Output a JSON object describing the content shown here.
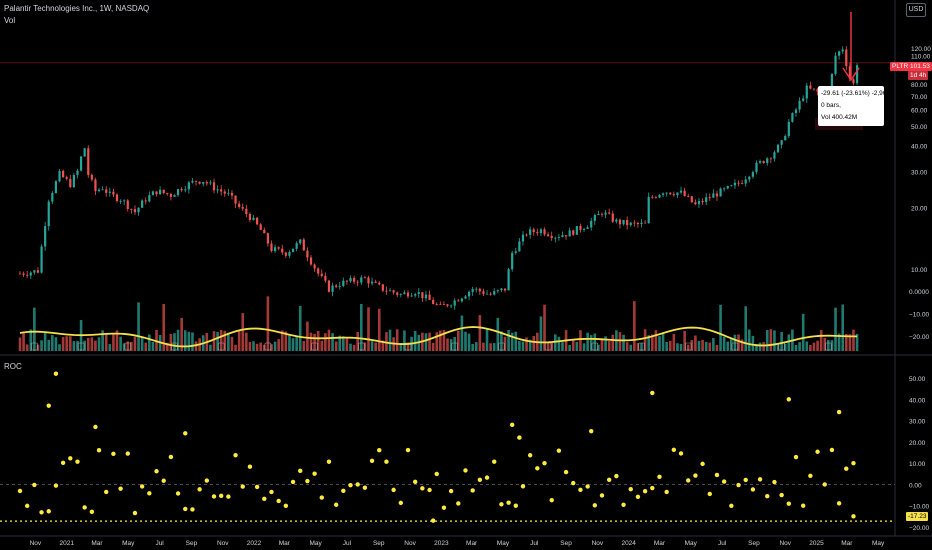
{
  "header": {
    "symbol_line": "Palantir Technologies Inc., 1W, NASDAQ",
    "volume_label": "Vol",
    "roc_label": "ROC",
    "currency_button": "USD"
  },
  "price_tag": {
    "ticker": "PLTR",
    "price": "101.53",
    "countdown": "1d 4h"
  },
  "measure_tooltip": {
    "line1": "-29.61 (-23.61%) -2,961",
    "line2": "0 bars,",
    "line3": "Vol 400.42M"
  },
  "roc_tag": "-17.23",
  "colors": {
    "up": "#26a69a",
    "down": "#ef5350",
    "ma": "#f5e04a",
    "roc": "#ffeb3b",
    "background": "#000000",
    "axis_text": "#d1d4dc",
    "arrow": "#f23645"
  },
  "chart_data": [
    {
      "type": "candlestick",
      "scale": "log",
      "ylim": [
        5,
        128
      ],
      "yticks": [
        10.0,
        20.0,
        30.0,
        40.0,
        50.0,
        60.0,
        70.0,
        80.0,
        90.0,
        110.0,
        120.0
      ],
      "ytick_labels": [
        "10.00",
        "20.00",
        "30.00",
        "40.00",
        "50.00",
        "60.00",
        "70.00",
        "80.00",
        "90.00",
        "110.00",
        "120.00"
      ],
      "x_start": "2020-10-02",
      "x_end": "2025-05-30",
      "x_tick_labels": [
        {
          "label": "Nov",
          "date": "2020-11-01"
        },
        {
          "label": "2021",
          "date": "2021-01-01"
        },
        {
          "label": "Mar",
          "date": "2021-03-01"
        },
        {
          "label": "May",
          "date": "2021-05-01"
        },
        {
          "label": "Jul",
          "date": "2021-07-01"
        },
        {
          "label": "Sep",
          "date": "2021-09-01"
        },
        {
          "label": "Nov",
          "date": "2021-11-01"
        },
        {
          "label": "2022",
          "date": "2022-01-01"
        },
        {
          "label": "Mar",
          "date": "2022-03-01"
        },
        {
          "label": "May",
          "date": "2022-05-01"
        },
        {
          "label": "Jul",
          "date": "2022-07-01"
        },
        {
          "label": "Sep",
          "date": "2022-09-01"
        },
        {
          "label": "Nov",
          "date": "2022-11-01"
        },
        {
          "label": "2023",
          "date": "2023-01-01"
        },
        {
          "label": "Mar",
          "date": "2023-03-01"
        },
        {
          "label": "May",
          "date": "2023-05-01"
        },
        {
          "label": "Jul",
          "date": "2023-07-01"
        },
        {
          "label": "Sep",
          "date": "2023-09-01"
        },
        {
          "label": "Nov",
          "date": "2023-11-01"
        },
        {
          "label": "2024",
          "date": "2024-01-01"
        },
        {
          "label": "Mar",
          "date": "2024-03-01"
        },
        {
          "label": "May",
          "date": "2024-05-01"
        },
        {
          "label": "Jul",
          "date": "2024-07-01"
        },
        {
          "label": "Sep",
          "date": "2024-09-01"
        },
        {
          "label": "Nov",
          "date": "2024-11-01"
        },
        {
          "label": "2025",
          "date": "2025-01-01"
        },
        {
          "label": "Mar",
          "date": "2025-03-01"
        },
        {
          "label": "May",
          "date": "2025-05-01"
        }
      ],
      "close_path": [
        [
          "2020-10-02",
          9.5
        ],
        [
          "2020-11-06",
          9.8
        ],
        [
          "2020-11-27",
          22
        ],
        [
          "2020-12-18",
          29
        ],
        [
          "2021-01-08",
          26
        ],
        [
          "2021-01-22",
          30
        ],
        [
          "2021-01-29",
          35
        ],
        [
          "2021-02-05",
          39
        ],
        [
          "2021-02-12",
          29
        ],
        [
          "2021-02-26",
          24
        ],
        [
          "2021-03-12",
          25
        ],
        [
          "2021-03-26",
          23
        ],
        [
          "2021-04-16",
          22
        ],
        [
          "2021-05-14",
          19
        ],
        [
          "2021-06-04",
          22
        ],
        [
          "2021-06-25",
          24
        ],
        [
          "2021-07-23",
          23
        ],
        [
          "2021-08-13",
          25
        ],
        [
          "2021-09-10",
          27
        ],
        [
          "2021-09-24",
          27
        ],
        [
          "2021-10-15",
          25
        ],
        [
          "2021-11-12",
          23
        ],
        [
          "2021-12-03",
          20
        ],
        [
          "2021-12-24",
          18
        ],
        [
          "2022-01-14",
          15.5
        ],
        [
          "2022-02-04",
          12.5
        ],
        [
          "2022-03-04",
          12
        ],
        [
          "2022-04-01",
          13.5
        ],
        [
          "2022-05-06",
          9.5
        ],
        [
          "2022-05-27",
          8
        ],
        [
          "2022-06-17",
          8.5
        ],
        [
          "2022-08-05",
          9
        ],
        [
          "2022-08-19",
          8.5
        ],
        [
          "2022-09-09",
          8
        ],
        [
          "2022-10-14",
          7.5
        ],
        [
          "2022-11-11",
          7.8
        ],
        [
          "2022-12-30",
          6.5
        ],
        [
          "2023-01-27",
          7
        ],
        [
          "2023-03-03",
          8
        ],
        [
          "2023-04-07",
          7.5
        ],
        [
          "2023-05-05",
          8
        ],
        [
          "2023-05-19",
          12
        ],
        [
          "2023-06-16",
          15
        ],
        [
          "2023-07-14",
          15.5
        ],
        [
          "2023-08-11",
          14.5
        ],
        [
          "2023-09-08",
          15
        ],
        [
          "2023-10-13",
          16.5
        ],
        [
          "2023-11-10",
          19
        ],
        [
          "2023-12-08",
          17
        ],
        [
          "2024-01-05",
          16.5
        ],
        [
          "2024-02-02",
          16.5
        ],
        [
          "2024-02-09",
          22
        ],
        [
          "2024-03-08",
          24
        ],
        [
          "2024-04-12",
          23.5
        ],
        [
          "2024-05-10",
          20.5
        ],
        [
          "2024-06-14",
          23
        ],
        [
          "2024-07-19",
          25
        ],
        [
          "2024-08-09",
          27
        ],
        [
          "2024-09-06",
          32
        ],
        [
          "2024-10-04",
          36
        ],
        [
          "2024-10-25",
          41
        ],
        [
          "2024-11-08",
          52
        ],
        [
          "2024-11-22",
          60
        ],
        [
          "2024-12-13",
          76
        ],
        [
          "2025-01-03",
          73
        ],
        [
          "2025-01-24",
          71
        ],
        [
          "2025-02-07",
          110
        ],
        [
          "2025-02-21",
          120
        ],
        [
          "2025-03-07",
          85
        ],
        [
          "2025-03-14",
          80
        ],
        [
          "2025-03-21",
          101.53
        ]
      ],
      "last_price": 101.53,
      "last_price_line": true
    },
    {
      "type": "bar",
      "name": "Vol",
      "yticks": [
        0,
        -10,
        -20
      ],
      "ytick_labels": [
        "0.0000",
        "−10.00",
        "−20.00"
      ],
      "ma_line": true
    },
    {
      "type": "scatter",
      "name": "ROC",
      "ylim": [
        -23,
        58
      ],
      "yticks": [
        50,
        40,
        30,
        20,
        10,
        0,
        -10,
        -20
      ],
      "ytick_labels": [
        "50.00",
        "40.00",
        "30.00",
        "20.00",
        "10.00",
        "0.00",
        "−10.00",
        "−20.00"
      ],
      "zero_line": true,
      "last_value": -17.23,
      "highlights": [
        [
          "2020-12-11",
          52
        ],
        [
          "2020-11-27",
          37
        ],
        [
          "2021-02-26",
          27
        ],
        [
          "2021-08-20",
          24
        ],
        [
          "2022-12-16",
          -17
        ],
        [
          "2023-05-19",
          28
        ],
        [
          "2023-06-02",
          22
        ],
        [
          "2023-10-20",
          25
        ],
        [
          "2024-02-16",
          43
        ],
        [
          "2024-11-08",
          40
        ],
        [
          "2025-02-14",
          34
        ],
        [
          "2025-03-14",
          -15
        ]
      ]
    }
  ]
}
